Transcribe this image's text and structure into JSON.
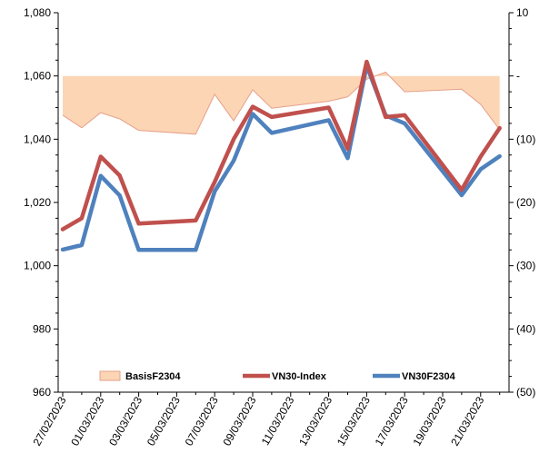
{
  "chart_data": {
    "type": "line",
    "x": [
      "27/02/2023",
      "28/02/2023",
      "01/03/2023",
      "02/03/2023",
      "03/03/2023",
      "06/03/2023",
      "07/03/2023",
      "08/03/2023",
      "09/03/2023",
      "10/03/2023",
      "13/03/2023",
      "14/03/2023",
      "15/03/2023",
      "16/03/2023",
      "17/03/2023",
      "20/03/2023",
      "21/03/2023",
      "22/03/2023"
    ],
    "x_dates_day_offset": null,
    "x_tick_labels": [
      "27/02/2023",
      "01/03/2023",
      "03/03/2023",
      "05/03/2023",
      "07/03/2023",
      "09/03/2023",
      "11/03/2023",
      "13/03/2023",
      "15/03/2023",
      "17/03/2023",
      "19/03/2023",
      "21/03/2023"
    ],
    "y_left_range": [
      960,
      1080
    ],
    "y_left_ticks": [
      "960",
      "980",
      "1,000",
      "1,020",
      "1,040",
      "1,060",
      "1,080"
    ],
    "y_right_range": [
      -50,
      10
    ],
    "y_right_ticks": [
      "(50)",
      "(40)",
      "(30)",
      "(20)",
      "(10)",
      "-",
      "10"
    ],
    "series": [
      {
        "name": "BasisF2304",
        "axis": "right",
        "kind": "area",
        "color": "#fcd5b4",
        "edge_color": "#e6a08a",
        "values": [
          -6.2,
          -8.2,
          -5.8,
          -6.8,
          -8.6,
          -9.2,
          -2.9,
          -7.1,
          -2.2,
          -5.1,
          -4.0,
          -3.3,
          -0.5,
          0.6,
          -2.5,
          -2.1,
          -4.5,
          -8.5
        ]
      },
      {
        "name": "VN30-Index",
        "axis": "left",
        "kind": "line",
        "color": "#c0504d",
        "values": [
          1011.5,
          1015.0,
          1034.5,
          1028.5,
          1013.3,
          1014.3,
          1026.5,
          1040.0,
          1050.3,
          1047.0,
          1050.0,
          1037.0,
          1064.5,
          1047.0,
          1047.6,
          1024.0,
          1034.5,
          1043.5
        ]
      },
      {
        "name": "VN30F2304",
        "axis": "left",
        "kind": "line",
        "color": "#4f81bd",
        "values": [
          1005.1,
          1006.5,
          1028.4,
          1022.2,
          1005.0,
          1005.0,
          1023.5,
          1033.2,
          1048.0,
          1042.0,
          1046.0,
          1034.0,
          1063.2,
          1047.5,
          1045.0,
          1022.3,
          1030.5,
          1034.6
        ]
      }
    ],
    "legend_position": "bottom-inside",
    "grid": false
  }
}
